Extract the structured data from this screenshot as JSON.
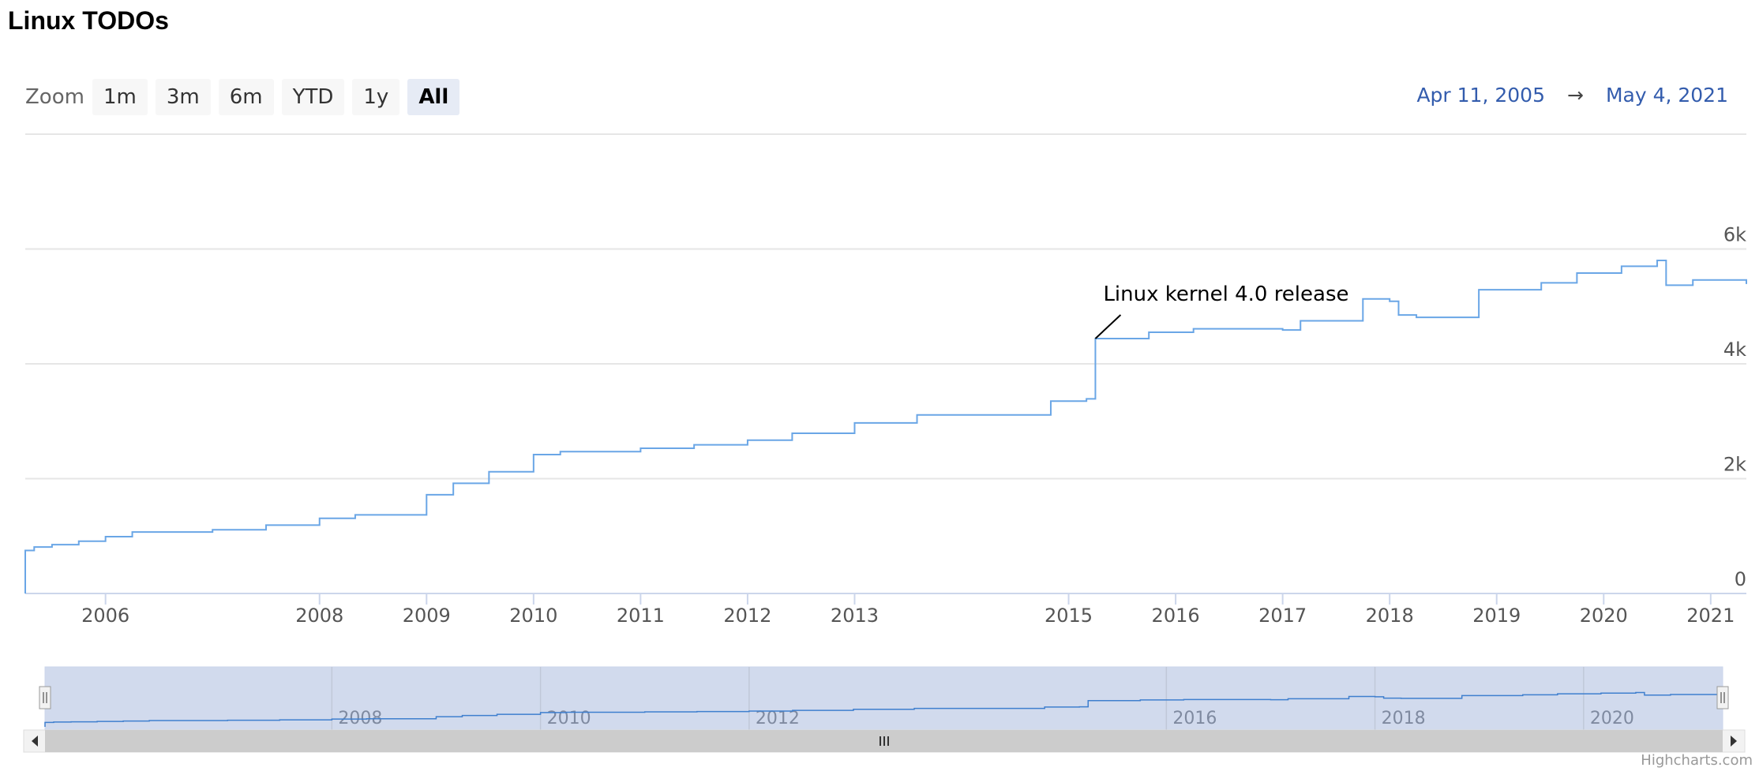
{
  "title": "Linux TODOs",
  "zoom": {
    "label": "Zoom",
    "buttons": [
      "1m",
      "3m",
      "6m",
      "YTD",
      "1y",
      "All"
    ],
    "selected": "All"
  },
  "range": {
    "from": "Apr 11, 2005",
    "arrow": "→",
    "to": "May 4, 2021"
  },
  "credits": "Highcharts.com",
  "chart_data": {
    "type": "line",
    "step": true,
    "color": "#6aa6e6",
    "grid": true,
    "x": [
      "2005-04",
      "2005-05",
      "2005-07",
      "2005-10",
      "2006-01",
      "2006-04",
      "2007-01",
      "2007-07",
      "2008-01",
      "2008-05",
      "2008-10",
      "2009-01",
      "2009-04",
      "2009-08",
      "2010-01",
      "2010-04",
      "2011-01",
      "2011-07",
      "2012-01",
      "2012-06",
      "2013-01",
      "2013-08",
      "2014-11",
      "2015-03",
      "2015-04",
      "2015-10",
      "2016-03",
      "2017-01",
      "2017-03",
      "2017-10",
      "2018-01",
      "2018-02",
      "2018-04",
      "2018-11",
      "2019-06",
      "2019-10",
      "2020-03",
      "2020-07",
      "2020-08",
      "2020-11",
      "2021-05"
    ],
    "values": [
      750,
      810,
      850,
      910,
      990,
      1070,
      1110,
      1190,
      1310,
      1370,
      1370,
      1720,
      1920,
      2120,
      2420,
      2470,
      2530,
      2590,
      2670,
      2790,
      2970,
      3110,
      3350,
      3390,
      4440,
      4550,
      4610,
      4590,
      4750,
      5130,
      5090,
      4850,
      4810,
      5290,
      5410,
      5580,
      5700,
      5800,
      5370,
      5460,
      5390
    ],
    "xlim": [
      "2005-04",
      "2021-05"
    ],
    "xticks": [
      {
        "value": "2006-01",
        "label": "2006"
      },
      {
        "value": "2008-01",
        "label": "2008"
      },
      {
        "value": "2009-01",
        "label": "2009"
      },
      {
        "value": "2010-01",
        "label": "2010"
      },
      {
        "value": "2011-01",
        "label": "2011"
      },
      {
        "value": "2012-01",
        "label": "2012"
      },
      {
        "value": "2013-01",
        "label": "2013"
      },
      {
        "value": "2015-01",
        "label": "2015"
      },
      {
        "value": "2016-01",
        "label": "2016"
      },
      {
        "value": "2017-01",
        "label": "2017"
      },
      {
        "value": "2018-01",
        "label": "2018"
      },
      {
        "value": "2019-01",
        "label": "2019"
      },
      {
        "value": "2020-01",
        "label": "2020"
      },
      {
        "value": "2021-01",
        "label": "2021"
      }
    ],
    "ylim": [
      0,
      8000
    ],
    "yticks": [
      0,
      {
        "value": 2000,
        "label": "2k"
      },
      {
        "value": 4000,
        "label": "4k"
      },
      {
        "value": 6000,
        "label": "6k"
      }
    ],
    "annotations": [
      {
        "text": "Linux kernel 4.0 release",
        "x": "2015-04"
      }
    ],
    "navigator": {
      "xticks": [
        {
          "value": "2008-01",
          "label": "2008"
        },
        {
          "value": "2010-01",
          "label": "2010"
        },
        {
          "value": "2012-01",
          "label": "2012"
        },
        {
          "value": "2016-01",
          "label": "2016"
        },
        {
          "value": "2018-01",
          "label": "2018"
        },
        {
          "value": "2020-01",
          "label": "2020"
        }
      ]
    }
  }
}
